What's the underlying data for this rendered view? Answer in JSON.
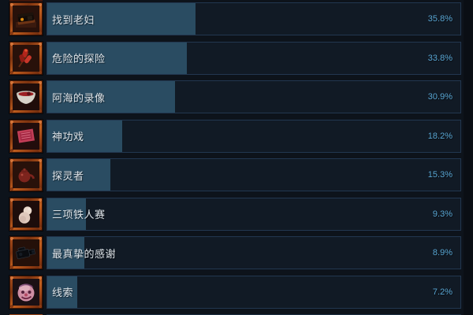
{
  "theme": {
    "page_bg": "#0d131b",
    "row_bg": "#111a25",
    "row_border": "#223750",
    "fill": "#2a4c62",
    "title_color": "#dde3e8",
    "pct_color": "#58a5d2",
    "edge_strip": "#0a0e14"
  },
  "achievements": [
    {
      "title": "找到老妇",
      "percent_label": "35.8%",
      "percent_value": 35.8,
      "icon": "cassette-recorder-icon"
    },
    {
      "title": "危险的探险",
      "percent_label": "33.8%",
      "percent_value": 33.8,
      "icon": "firecracker-icon"
    },
    {
      "title": "阿海的录像",
      "percent_label": "30.9%",
      "percent_value": 30.9,
      "icon": "blood-bowl-icon"
    },
    {
      "title": "神功戏",
      "percent_label": "18.2%",
      "percent_value": 18.2,
      "icon": "opera-stage-icon"
    },
    {
      "title": "探灵者",
      "percent_label": "15.3%",
      "percent_value": 15.3,
      "icon": "teapot-icon"
    },
    {
      "title": "三项铁人赛",
      "percent_label": "9.3%",
      "percent_value": 9.3,
      "icon": "gourd-figure-icon"
    },
    {
      "title": "最真挚的感谢",
      "percent_label": "8.9%",
      "percent_value": 8.9,
      "icon": "video-camera-icon"
    },
    {
      "title": "线索",
      "percent_label": "7.2%",
      "percent_value": 7.2,
      "icon": "clown-face-icon"
    }
  ]
}
